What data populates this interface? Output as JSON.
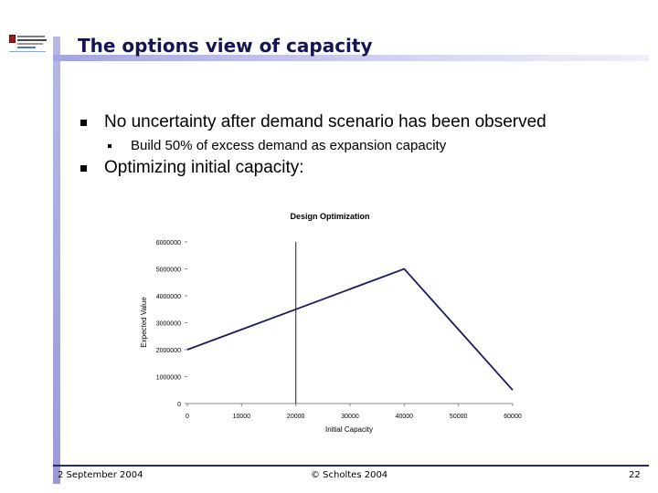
{
  "slide": {
    "title": "The options view of capacity",
    "bullets": [
      {
        "text": "No uncertainty after demand scenario has been observed",
        "sub": [
          "Build 50% of excess demand as expansion capacity"
        ]
      },
      {
        "text": "Optimizing initial capacity:",
        "sub": []
      }
    ]
  },
  "footer": {
    "date": "2 September 2004",
    "copyright": "© Scholtes 2004",
    "page": "22"
  },
  "chart_data": {
    "type": "line",
    "title": "Design Optimization",
    "xlabel": "Initial Capacity",
    "ylabel": "Expected Value",
    "xlim": [
      0,
      60000
    ],
    "ylim": [
      0,
      6000000
    ],
    "xticks": [
      0,
      10000,
      20000,
      30000,
      40000,
      50000,
      60000
    ],
    "yticks": [
      0,
      1000000,
      2000000,
      3000000,
      4000000,
      5000000,
      6000000
    ],
    "xtick_labels": [
      "0",
      "10000",
      "20000",
      "30000",
      "40000",
      "50000",
      "60000"
    ],
    "ytick_labels": [
      "0",
      "1000000",
      "2000000",
      "3000000",
      "4000000",
      "5000000",
      "6000000"
    ],
    "grid": false,
    "vertical_marker_x": 20000,
    "series": [
      {
        "x": [
          0,
          20000,
          40000,
          60000
        ],
        "y": [
          2000000,
          3500000,
          5000000,
          500000
        ],
        "color": "#1c1c5c"
      }
    ]
  }
}
